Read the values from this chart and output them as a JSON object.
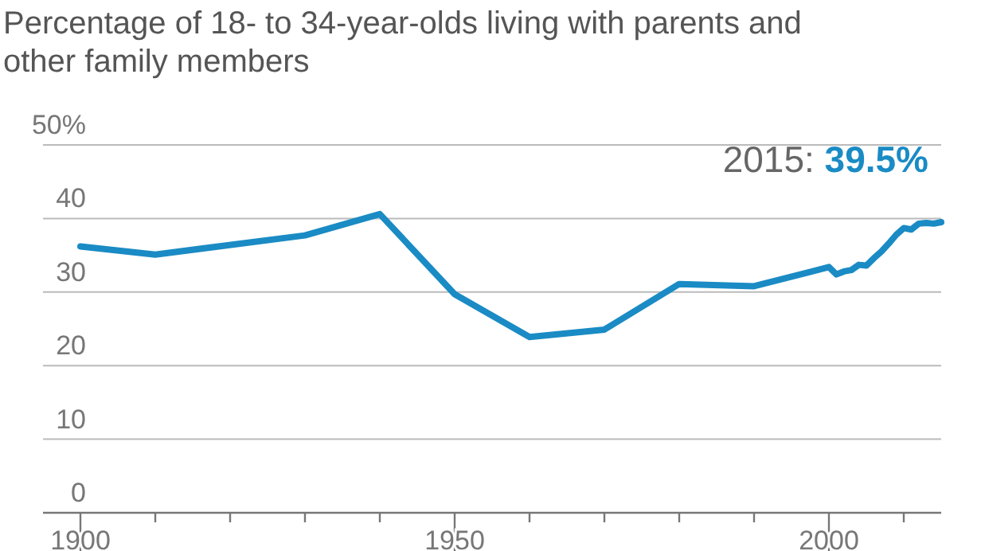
{
  "chart_data": {
    "type": "line",
    "title": "Percentage of 18- to 34-year-olds living with parents and other family members",
    "x": [
      1900,
      1910,
      1930,
      1940,
      1950,
      1960,
      1970,
      1980,
      1990,
      2000,
      2001,
      2002,
      2003,
      2004,
      2005,
      2006,
      2007,
      2008,
      2009,
      2010,
      2011,
      2012,
      2013,
      2014,
      2015
    ],
    "series": [
      {
        "color": "#1a8bc4",
        "values": [
          36.2,
          35.1,
          37.7,
          40.6,
          29.7,
          23.9,
          24.9,
          31.1,
          30.8,
          33.4,
          32.4,
          32.8,
          33.0,
          33.7,
          33.6,
          34.6,
          35.5,
          36.6,
          37.8,
          38.7,
          38.5,
          39.3,
          39.4,
          39.3,
          39.5
        ]
      }
    ],
    "xlim": [
      1895,
      2015
    ],
    "xticks": [
      1900,
      {
        "value": 1910,
        "label": null
      },
      {
        "value": 1920,
        "label": null
      },
      {
        "value": 1930,
        "label": null
      },
      {
        "value": 1940,
        "label": null
      },
      1950,
      {
        "value": 1960,
        "label": null
      },
      {
        "value": 1970,
        "label": null
      },
      {
        "value": 1980,
        "label": null
      },
      {
        "value": 1990,
        "label": null
      },
      2000,
      {
        "value": 2010,
        "label": null
      }
    ],
    "ylim": [
      0,
      50
    ],
    "yticks": [
      0,
      10,
      20,
      30,
      40,
      {
        "value": 50,
        "label": "50%"
      }
    ],
    "grid": "y",
    "marker": "none",
    "line_style": "solid",
    "annotations": [
      "2015: 39.5%"
    ]
  }
}
